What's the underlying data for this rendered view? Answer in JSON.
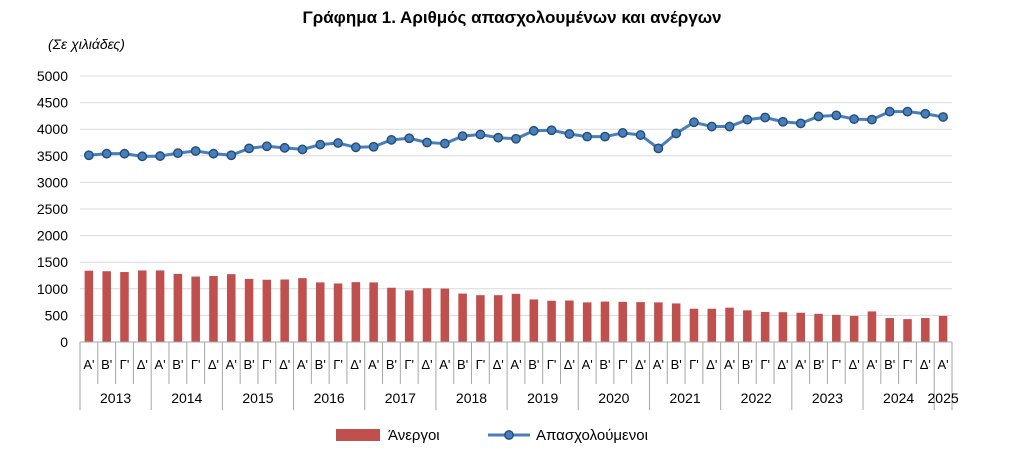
{
  "chart_data": {
    "type": "bar",
    "title": "Γράφημα 1. Αριθμός απασχολουμένων και ανέργων",
    "unit_note": "(Σε χιλιάδες)",
    "ylim": [
      0,
      5000
    ],
    "y_ticks": [
      0,
      500,
      1000,
      1500,
      2000,
      2500,
      3000,
      3500,
      4000,
      4500,
      5000
    ],
    "grid": true,
    "legend_position": "bottom",
    "quarter_labels": [
      "Α'",
      "Β'",
      "Γ'",
      "Δ'"
    ],
    "years": [
      "2013",
      "2014",
      "2015",
      "2016",
      "2017",
      "2018",
      "2019",
      "2020",
      "2021",
      "2022",
      "2023",
      "2024",
      "2025"
    ],
    "first_quarter_index": 0,
    "series": [
      {
        "name": "Άνεργοι",
        "type": "bar",
        "color": "#c0504d",
        "values": [
          1340,
          1330,
          1315,
          1345,
          1345,
          1280,
          1230,
          1240,
          1275,
          1185,
          1170,
          1175,
          1200,
          1120,
          1100,
          1125,
          1120,
          1020,
          970,
          1010,
          1005,
          910,
          880,
          880,
          905,
          800,
          775,
          780,
          745,
          760,
          755,
          750,
          745,
          725,
          625,
          625,
          645,
          595,
          565,
          560,
          550,
          530,
          510,
          490,
          575,
          450,
          430,
          450,
          490
        ]
      },
      {
        "name": "Απασχολούμενοι",
        "type": "line",
        "color": "#4a7ebb",
        "marker_color": "#1f4e79",
        "values": [
          3510,
          3540,
          3540,
          3490,
          3495,
          3550,
          3590,
          3540,
          3510,
          3640,
          3680,
          3650,
          3620,
          3710,
          3740,
          3660,
          3670,
          3800,
          3830,
          3750,
          3730,
          3870,
          3900,
          3840,
          3820,
          3970,
          3980,
          3910,
          3860,
          3860,
          3930,
          3890,
          3640,
          3920,
          4130,
          4050,
          4050,
          4180,
          4220,
          4140,
          4110,
          4240,
          4260,
          4190,
          4180,
          4330,
          4330,
          4290,
          4230
        ]
      }
    ]
  }
}
